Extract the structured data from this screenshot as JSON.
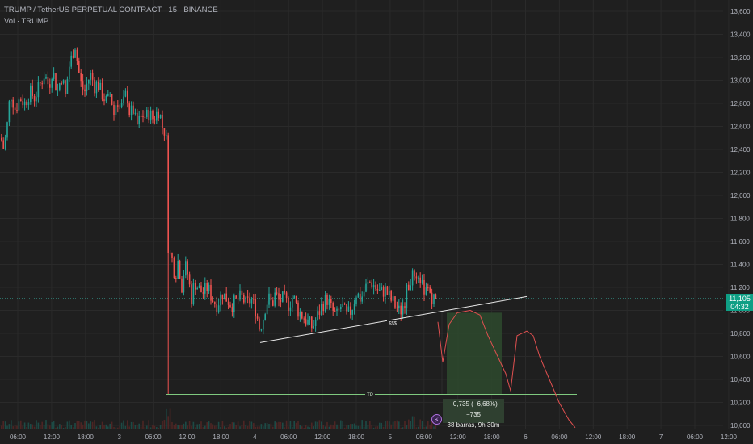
{
  "legend": {
    "symbol_line": "TRUMP / TetherUS PERPETUAL CONTRACT · 15 · BINANCE",
    "volume_line": "Vol · TRUMP"
  },
  "price_axis": {
    "ticks": [
      "13,600",
      "13,400",
      "13,200",
      "13,000",
      "12,800",
      "12,600",
      "12,400",
      "12,200",
      "12,000",
      "11,800",
      "11,600",
      "11,400",
      "11,200",
      "11,000",
      "10,800",
      "10,600",
      "10,400",
      "10,200",
      "10,000"
    ]
  },
  "time_axis": {
    "ticks": [
      "06:00",
      "12:00",
      "18:00",
      "3",
      "06:00",
      "12:00",
      "18:00",
      "4",
      "06:00",
      "12:00",
      "18:00",
      "5",
      "06:00",
      "12:00",
      "18:00",
      "6",
      "06:00",
      "12:00",
      "18:00",
      "7",
      "06:00",
      "12:00"
    ]
  },
  "current_price": {
    "value": "11,105",
    "countdown": "04:32"
  },
  "annotations": {
    "trendline_label": "$$$",
    "tp_label": "TP",
    "measure_line1": "−0,735 (−6,68%) −735",
    "measure_line2": "38 barras, 9h 30m"
  },
  "colors": {
    "background": "#1f1f1f",
    "up": "#26a69a",
    "down": "#ef5350",
    "grid": "#2a2a2a",
    "axis_text": "#b2b5be",
    "trendline": "#e8e8e8",
    "tp_line": "#7fc97f",
    "projection": "#e05050",
    "price_tag": "#0f9f85"
  },
  "chart_data": {
    "type": "candlestick",
    "title": "TRUMP / TetherUS PERPETUAL CONTRACT · 15 · BINANCE",
    "ylim": [
      9.98,
      13.65
    ],
    "y_scale": "linear",
    "path_ohlc_points": [
      [
        0,
        12.5
      ],
      [
        4,
        12.4
      ],
      [
        8,
        12.6
      ],
      [
        12,
        12.9
      ],
      [
        18,
        12.75
      ],
      [
        24,
        12.85
      ],
      [
        30,
        12.8
      ],
      [
        36,
        12.9
      ],
      [
        42,
        12.85
      ],
      [
        48,
        12.95
      ],
      [
        54,
        13.05
      ],
      [
        60,
        12.95
      ],
      [
        64,
        13.1
      ],
      [
        70,
        12.9
      ],
      [
        76,
        13.05
      ],
      [
        80,
        12.85
      ],
      [
        84,
        13.1
      ],
      [
        88,
        13.2
      ],
      [
        92,
        13.32
      ],
      [
        96,
        13.1
      ],
      [
        100,
        12.95
      ],
      [
        104,
        12.9
      ],
      [
        108,
        13.0
      ],
      [
        112,
        13.05
      ],
      [
        116,
        12.95
      ],
      [
        120,
        12.98
      ],
      [
        124,
        12.9
      ],
      [
        128,
        12.85
      ],
      [
        132,
        12.8
      ],
      [
        136,
        12.9
      ],
      [
        140,
        12.7
      ],
      [
        144,
        12.85
      ],
      [
        148,
        12.75
      ],
      [
        152,
        12.8
      ],
      [
        156,
        12.9
      ],
      [
        160,
        12.7
      ],
      [
        164,
        12.75
      ],
      [
        168,
        12.6
      ],
      [
        172,
        12.65
      ],
      [
        176,
        12.7
      ],
      [
        180,
        12.68
      ],
      [
        184,
        12.72
      ],
      [
        188,
        12.66
      ],
      [
        192,
        12.7
      ],
      [
        196,
        12.75
      ],
      [
        200,
        12.6
      ],
      [
        204,
        12.55
      ],
      [
        206,
        12.4
      ],
      [
        208,
        11.5
      ],
      [
        212,
        11.45
      ],
      [
        216,
        11.3
      ],
      [
        220,
        11.45
      ],
      [
        224,
        11.2
      ],
      [
        228,
        11.4
      ],
      [
        232,
        11.3
      ],
      [
        236,
        11.1
      ],
      [
        240,
        11.25
      ],
      [
        244,
        11.2
      ],
      [
        250,
        11.15
      ],
      [
        256,
        11.2
      ],
      [
        262,
        11.1
      ],
      [
        268,
        11.05
      ],
      [
        274,
        11.15
      ],
      [
        280,
        11.1
      ],
      [
        286,
        11.05
      ],
      [
        292,
        11.08
      ],
      [
        298,
        11.12
      ],
      [
        304,
        11.05
      ],
      [
        310,
        11.1
      ],
      [
        316,
        11.0
      ],
      [
        320,
        10.85
      ],
      [
        324,
        10.9
      ],
      [
        328,
        11.05
      ],
      [
        332,
        11.1
      ],
      [
        336,
        11.05
      ],
      [
        340,
        11.15
      ],
      [
        344,
        11.08
      ],
      [
        350,
        11.1
      ],
      [
        356,
        11.05
      ],
      [
        362,
        11.12
      ],
      [
        368,
        11.0
      ],
      [
        374,
        10.95
      ],
      [
        380,
        10.9
      ],
      [
        386,
        10.85
      ],
      [
        392,
        10.95
      ],
      [
        398,
        11.05
      ],
      [
        404,
        11.1
      ],
      [
        410,
        11.0
      ],
      [
        416,
        10.95
      ],
      [
        422,
        11.05
      ],
      [
        428,
        10.95
      ],
      [
        434,
        11.0
      ],
      [
        440,
        11.15
      ],
      [
        446,
        11.1
      ],
      [
        452,
        11.2
      ],
      [
        458,
        11.25
      ],
      [
        464,
        11.2
      ],
      [
        470,
        11.15
      ],
      [
        476,
        11.18
      ],
      [
        482,
        11.1
      ],
      [
        488,
        11.05
      ],
      [
        494,
        10.98
      ],
      [
        500,
        11.08
      ],
      [
        504,
        11.2
      ],
      [
        508,
        11.3
      ],
      [
        512,
        11.25
      ],
      [
        516,
        11.2
      ],
      [
        520,
        11.3
      ],
      [
        524,
        11.1
      ],
      [
        528,
        11.2
      ],
      [
        532,
        11.15
      ],
      [
        536,
        11.1
      ],
      [
        540,
        11.08
      ]
    ],
    "last_price": 11.105,
    "tp_price": 10.27,
    "trendline": {
      "from": [
        322,
        10.72
      ],
      "to": [
        652,
        11.12
      ]
    },
    "measured_move": {
      "change": -0.735,
      "percent": -6.68,
      "ticks": -735,
      "bars": 38,
      "duration": "9h 30m"
    },
    "projection_path": [
      [
        542,
        10.9
      ],
      [
        548,
        10.55
      ],
      [
        556,
        10.88
      ],
      [
        566,
        10.98
      ],
      [
        582,
        11.0
      ],
      [
        594,
        10.96
      ],
      [
        604,
        10.78
      ],
      [
        616,
        10.6
      ],
      [
        626,
        10.45
      ],
      [
        632,
        10.3
      ],
      [
        640,
        10.78
      ],
      [
        652,
        10.82
      ],
      [
        660,
        10.78
      ],
      [
        668,
        10.6
      ],
      [
        680,
        10.4
      ],
      [
        692,
        10.2
      ],
      [
        704,
        10.05
      ],
      [
        712,
        9.98
      ]
    ],
    "grid": true
  }
}
